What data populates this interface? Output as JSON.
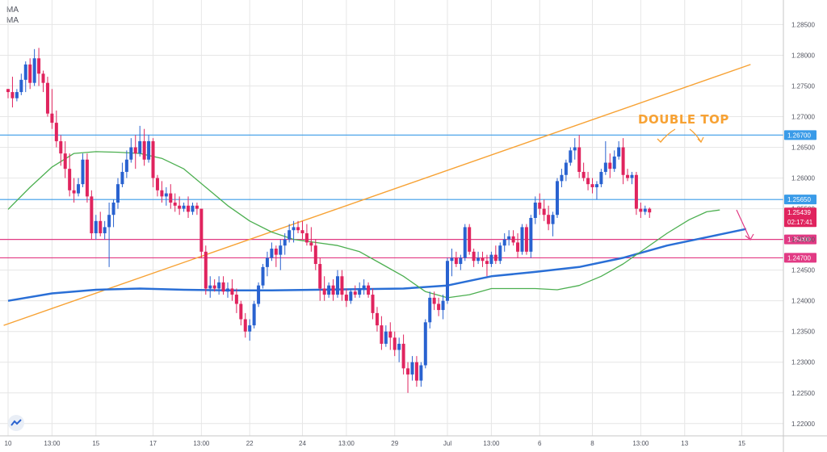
{
  "indicators": {
    "label_1": "MA",
    "label_2": "MA"
  },
  "colors": {
    "bull": "#2962d0",
    "bear": "#e0245e",
    "ma_slow": "#2a6fd6",
    "ma_fast": "#4caf50",
    "trendline": "#f7a234",
    "resistance": "#3a9be8",
    "support": "#e23a84",
    "grid": "#e6e6e6"
  },
  "chart_data": {
    "type": "candlestick",
    "title": "",
    "annotation": "DOUBLE TOP",
    "ylim": [
      1.218,
      1.289
    ],
    "y_ticks": [
      "1.28500",
      "1.28000",
      "1.27500",
      "1.27000",
      "1.26500",
      "1.26000",
      "1.25500",
      "1.25000",
      "1.24500",
      "1.24000",
      "1.23500",
      "1.23000",
      "1.22500",
      "1.22000"
    ],
    "x_ticks": [
      {
        "label": "10",
        "i": 0
      },
      {
        "label": "13:00",
        "i": 10
      },
      {
        "label": "15",
        "i": 20
      },
      {
        "label": "17",
        "i": 33
      },
      {
        "label": "13:00",
        "i": 44
      },
      {
        "label": "22",
        "i": 55
      },
      {
        "label": "24",
        "i": 67
      },
      {
        "label": "13:00",
        "i": 77
      },
      {
        "label": "29",
        "i": 88
      },
      {
        "label": "Jul",
        "i": 100
      },
      {
        "label": "13:00",
        "i": 110
      },
      {
        "label": "6",
        "i": 121
      },
      {
        "label": "8",
        "i": 133
      },
      {
        "label": "13:00",
        "i": 144
      },
      {
        "label": "13",
        "i": 154
      },
      {
        "label": "15",
        "i": 167
      }
    ],
    "levels": [
      {
        "price": 1.267,
        "label": "1.26700",
        "kind": "resistance"
      },
      {
        "price": 1.2565,
        "label": "1.25650",
        "kind": "resistance"
      },
      {
        "price": 1.25,
        "label": "1.25000",
        "kind": "support"
      },
      {
        "price": 1.247,
        "label": "1.24700",
        "kind": "support"
      }
    ],
    "price_badge": {
      "price": "1.25439",
      "countdown": "02:17:41"
    },
    "trendline": {
      "from": {
        "i": -1,
        "price": 1.236
      },
      "to": {
        "i": 169,
        "price": 1.2785
      }
    },
    "candles": [
      [
        1.2745,
        1.2745,
        1.273,
        1.274
      ],
      [
        1.274,
        1.2765,
        1.2715,
        1.273
      ],
      [
        1.273,
        1.2745,
        1.2725,
        1.274
      ],
      [
        1.274,
        1.277,
        1.2735,
        1.276
      ],
      [
        1.276,
        1.279,
        1.274,
        1.2785
      ],
      [
        1.2785,
        1.2795,
        1.2745,
        1.2755
      ],
      [
        1.2755,
        1.281,
        1.275,
        1.2795
      ],
      [
        1.2795,
        1.2812,
        1.275,
        1.277
      ],
      [
        1.277,
        1.2775,
        1.274,
        1.2755
      ],
      [
        1.2755,
        1.2765,
        1.27,
        1.2705
      ],
      [
        1.2705,
        1.2745,
        1.268,
        1.269
      ],
      [
        1.269,
        1.271,
        1.265,
        1.266
      ],
      [
        1.266,
        1.267,
        1.262,
        1.264
      ],
      [
        1.264,
        1.266,
        1.26,
        1.2615
      ],
      [
        1.2615,
        1.264,
        1.257,
        1.258
      ],
      [
        1.258,
        1.26,
        1.256,
        1.2575
      ],
      [
        1.2575,
        1.26,
        1.257,
        1.259
      ],
      [
        1.259,
        1.264,
        1.2585,
        1.263
      ],
      [
        1.263,
        1.264,
        1.256,
        1.257
      ],
      [
        1.257,
        1.258,
        1.25,
        1.251
      ],
      [
        1.251,
        1.254,
        1.25,
        1.253
      ],
      [
        1.253,
        1.2545,
        1.2505,
        1.251
      ],
      [
        1.251,
        1.253,
        1.25,
        1.252
      ],
      [
        1.252,
        1.256,
        1.2455,
        1.254
      ],
      [
        1.254,
        1.2565,
        1.252,
        1.256
      ],
      [
        1.256,
        1.26,
        1.255,
        1.259
      ],
      [
        1.259,
        1.2625,
        1.2585,
        1.261
      ],
      [
        1.261,
        1.2645,
        1.26,
        1.263
      ],
      [
        1.263,
        1.2665,
        1.2625,
        1.265
      ],
      [
        1.265,
        1.267,
        1.2615,
        1.264
      ],
      [
        1.264,
        1.2685,
        1.2635,
        1.266
      ],
      [
        1.266,
        1.268,
        1.262,
        1.263
      ],
      [
        1.263,
        1.267,
        1.2625,
        1.266
      ],
      [
        1.266,
        1.2665,
        1.2585,
        1.26
      ],
      [
        1.26,
        1.2605,
        1.257,
        1.258
      ],
      [
        1.258,
        1.2595,
        1.256,
        1.257
      ],
      [
        1.257,
        1.2585,
        1.2555,
        1.2575
      ],
      [
        1.2575,
        1.259,
        1.255,
        1.256
      ],
      [
        1.256,
        1.2575,
        1.2545,
        1.2555
      ],
      [
        1.2555,
        1.257,
        1.254,
        1.255
      ],
      [
        1.255,
        1.256,
        1.2545,
        1.2555
      ],
      [
        1.2555,
        1.257,
        1.2535,
        1.2545
      ],
      [
        1.2545,
        1.256,
        1.254,
        1.2555
      ],
      [
        1.2555,
        1.256,
        1.254,
        1.255
      ],
      [
        1.255,
        1.255,
        1.247,
        1.248
      ],
      [
        1.248,
        1.249,
        1.241,
        1.242
      ],
      [
        1.242,
        1.244,
        1.2405,
        1.2425
      ],
      [
        1.2425,
        1.2435,
        1.2415,
        1.242
      ],
      [
        1.242,
        1.244,
        1.241,
        1.243
      ],
      [
        1.243,
        1.244,
        1.241,
        1.2415
      ],
      [
        1.2415,
        1.243,
        1.2405,
        1.242
      ],
      [
        1.242,
        1.2435,
        1.24,
        1.241
      ],
      [
        1.241,
        1.242,
        1.238,
        1.2395
      ],
      [
        1.2395,
        1.24,
        1.236,
        1.237
      ],
      [
        1.237,
        1.238,
        1.234,
        1.235
      ],
      [
        1.235,
        1.237,
        1.2335,
        1.236
      ],
      [
        1.236,
        1.24,
        1.2355,
        1.2395
      ],
      [
        1.2395,
        1.243,
        1.239,
        1.2425
      ],
      [
        1.2425,
        1.246,
        1.242,
        1.2455
      ],
      [
        1.2455,
        1.248,
        1.244,
        1.247
      ],
      [
        1.247,
        1.2495,
        1.2465,
        1.2485
      ],
      [
        1.2485,
        1.249,
        1.2455,
        1.2475
      ],
      [
        1.2475,
        1.25,
        1.245,
        1.249
      ],
      [
        1.249,
        1.251,
        1.2475,
        1.25
      ],
      [
        1.25,
        1.2525,
        1.2495,
        1.2515
      ],
      [
        1.2515,
        1.253,
        1.2495,
        1.252
      ],
      [
        1.252,
        1.253,
        1.251,
        1.2515
      ],
      [
        1.2515,
        1.253,
        1.25,
        1.251
      ],
      [
        1.251,
        1.2525,
        1.249,
        1.2495
      ],
      [
        1.2495,
        1.252,
        1.248,
        1.249
      ],
      [
        1.249,
        1.25,
        1.245,
        1.246
      ],
      [
        1.246,
        1.247,
        1.24,
        1.242
      ],
      [
        1.242,
        1.244,
        1.24,
        1.241
      ],
      [
        1.241,
        1.243,
        1.2405,
        1.2425
      ],
      [
        1.2425,
        1.2435,
        1.24,
        1.241
      ],
      [
        1.241,
        1.245,
        1.2405,
        1.244
      ],
      [
        1.244,
        1.245,
        1.24,
        1.241
      ],
      [
        1.241,
        1.242,
        1.239,
        1.24
      ],
      [
        1.24,
        1.242,
        1.2395,
        1.2415
      ],
      [
        1.2415,
        1.2425,
        1.2405,
        1.241
      ],
      [
        1.241,
        1.243,
        1.2405,
        1.242
      ],
      [
        1.242,
        1.2435,
        1.241,
        1.2425
      ],
      [
        1.2425,
        1.243,
        1.2405,
        1.241
      ],
      [
        1.241,
        1.242,
        1.237,
        1.238
      ],
      [
        1.238,
        1.239,
        1.235,
        1.236
      ],
      [
        1.236,
        1.2375,
        1.232,
        1.233
      ],
      [
        1.233,
        1.236,
        1.2325,
        1.235
      ],
      [
        1.235,
        1.2365,
        1.232,
        1.234
      ],
      [
        1.234,
        1.235,
        1.231,
        1.232
      ],
      [
        1.232,
        1.234,
        1.23,
        1.233
      ],
      [
        1.233,
        1.2345,
        1.228,
        1.229
      ],
      [
        1.229,
        1.23,
        1.225,
        1.228
      ],
      [
        1.228,
        1.231,
        1.227,
        1.23
      ],
      [
        1.23,
        1.231,
        1.226,
        1.227
      ],
      [
        1.227,
        1.23,
        1.226,
        1.2295
      ],
      [
        1.2295,
        1.237,
        1.229,
        1.2365
      ],
      [
        1.2365,
        1.2415,
        1.2355,
        1.2405
      ],
      [
        1.2405,
        1.2415,
        1.2385,
        1.2395
      ],
      [
        1.2395,
        1.2405,
        1.2375,
        1.2385
      ],
      [
        1.2385,
        1.241,
        1.237,
        1.24
      ],
      [
        1.24,
        1.247,
        1.2395,
        1.2465
      ],
      [
        1.2465,
        1.2485,
        1.244,
        1.247
      ],
      [
        1.247,
        1.248,
        1.2455,
        1.246
      ],
      [
        1.246,
        1.2475,
        1.245,
        1.247
      ],
      [
        1.247,
        1.2525,
        1.2465,
        1.252
      ],
      [
        1.252,
        1.2525,
        1.2475,
        1.248
      ],
      [
        1.248,
        1.2485,
        1.2455,
        1.2465
      ],
      [
        1.2465,
        1.248,
        1.246,
        1.247
      ],
      [
        1.247,
        1.248,
        1.2455,
        1.2465
      ],
      [
        1.2465,
        1.2475,
        1.244,
        1.246
      ],
      [
        1.246,
        1.248,
        1.2455,
        1.2475
      ],
      [
        1.2475,
        1.249,
        1.246,
        1.2465
      ],
      [
        1.2465,
        1.2495,
        1.246,
        1.249
      ],
      [
        1.249,
        1.251,
        1.248,
        1.25
      ],
      [
        1.25,
        1.2515,
        1.249,
        1.2505
      ],
      [
        1.2505,
        1.2515,
        1.249,
        1.2495
      ],
      [
        1.2495,
        1.251,
        1.247,
        1.248
      ],
      [
        1.248,
        1.2525,
        1.2475,
        1.252
      ],
      [
        1.252,
        1.2525,
        1.2475,
        1.248
      ],
      [
        1.248,
        1.254,
        1.247,
        1.2535
      ],
      [
        1.2535,
        1.257,
        1.2525,
        1.256
      ],
      [
        1.256,
        1.2575,
        1.254,
        1.255
      ],
      [
        1.255,
        1.2565,
        1.253,
        1.254
      ],
      [
        1.254,
        1.2555,
        1.2515,
        1.2525
      ],
      [
        1.2525,
        1.2545,
        1.2505,
        1.254
      ],
      [
        1.254,
        1.26,
        1.2535,
        1.2595
      ],
      [
        1.2595,
        1.2615,
        1.2585,
        1.2605
      ],
      [
        1.2605,
        1.263,
        1.2595,
        1.2625
      ],
      [
        1.2625,
        1.265,
        1.262,
        1.2645
      ],
      [
        1.2645,
        1.2665,
        1.263,
        1.265
      ],
      [
        1.265,
        1.267,
        1.26,
        1.261
      ],
      [
        1.261,
        1.2625,
        1.2595,
        1.26
      ],
      [
        1.26,
        1.261,
        1.258,
        1.259
      ],
      [
        1.259,
        1.26,
        1.2575,
        1.2585
      ],
      [
        1.2585,
        1.2595,
        1.2565,
        1.259
      ],
      [
        1.259,
        1.2615,
        1.2585,
        1.261
      ],
      [
        1.261,
        1.266,
        1.2605,
        1.2625
      ],
      [
        1.2625,
        1.264,
        1.26,
        1.2615
      ],
      [
        1.2615,
        1.2645,
        1.261,
        1.2635
      ],
      [
        1.2635,
        1.266,
        1.263,
        1.265
      ],
      [
        1.265,
        1.2665,
        1.259,
        1.2605
      ],
      [
        1.2605,
        1.2615,
        1.2595,
        1.26
      ],
      [
        1.26,
        1.261,
        1.259,
        1.2605
      ],
      [
        1.2605,
        1.261,
        1.254,
        1.255
      ],
      [
        1.255,
        1.256,
        1.2535,
        1.2545
      ],
      [
        1.2545,
        1.2555,
        1.254,
        1.255
      ],
      [
        1.255,
        1.2552,
        1.2535,
        1.2544
      ]
    ],
    "ma_slow": [
      [
        0,
        1.24
      ],
      [
        10,
        1.2412
      ],
      [
        20,
        1.2418
      ],
      [
        30,
        1.242
      ],
      [
        40,
        1.2418
      ],
      [
        50,
        1.2417
      ],
      [
        60,
        1.2417
      ],
      [
        70,
        1.2418
      ],
      [
        80,
        1.2419
      ],
      [
        90,
        1.242
      ],
      [
        100,
        1.2425
      ],
      [
        110,
        1.244
      ],
      [
        120,
        1.2447
      ],
      [
        130,
        1.2455
      ],
      [
        140,
        1.247
      ],
      [
        150,
        1.249
      ],
      [
        160,
        1.2505
      ],
      [
        168,
        1.2517
      ]
    ],
    "ma_fast": [
      [
        0,
        1.2549
      ],
      [
        5,
        1.2585
      ],
      [
        10,
        1.2618
      ],
      [
        15,
        1.264
      ],
      [
        20,
        1.2643
      ],
      [
        25,
        1.2642
      ],
      [
        30,
        1.264
      ],
      [
        35,
        1.2632
      ],
      [
        40,
        1.2615
      ],
      [
        45,
        1.2585
      ],
      [
        50,
        1.2555
      ],
      [
        55,
        1.253
      ],
      [
        60,
        1.2512
      ],
      [
        65,
        1.25
      ],
      [
        70,
        1.2495
      ],
      [
        75,
        1.249
      ],
      [
        80,
        1.248
      ],
      [
        85,
        1.246
      ],
      [
        90,
        1.244
      ],
      [
        95,
        1.2415
      ],
      [
        100,
        1.2405
      ],
      [
        105,
        1.241
      ],
      [
        110,
        1.242
      ],
      [
        115,
        1.242
      ],
      [
        120,
        1.242
      ],
      [
        125,
        1.2418
      ],
      [
        130,
        1.2425
      ],
      [
        135,
        1.244
      ],
      [
        140,
        1.246
      ],
      [
        145,
        1.2485
      ],
      [
        150,
        1.251
      ],
      [
        155,
        1.2532
      ],
      [
        159,
        1.2545
      ],
      [
        162,
        1.2548
      ]
    ]
  }
}
